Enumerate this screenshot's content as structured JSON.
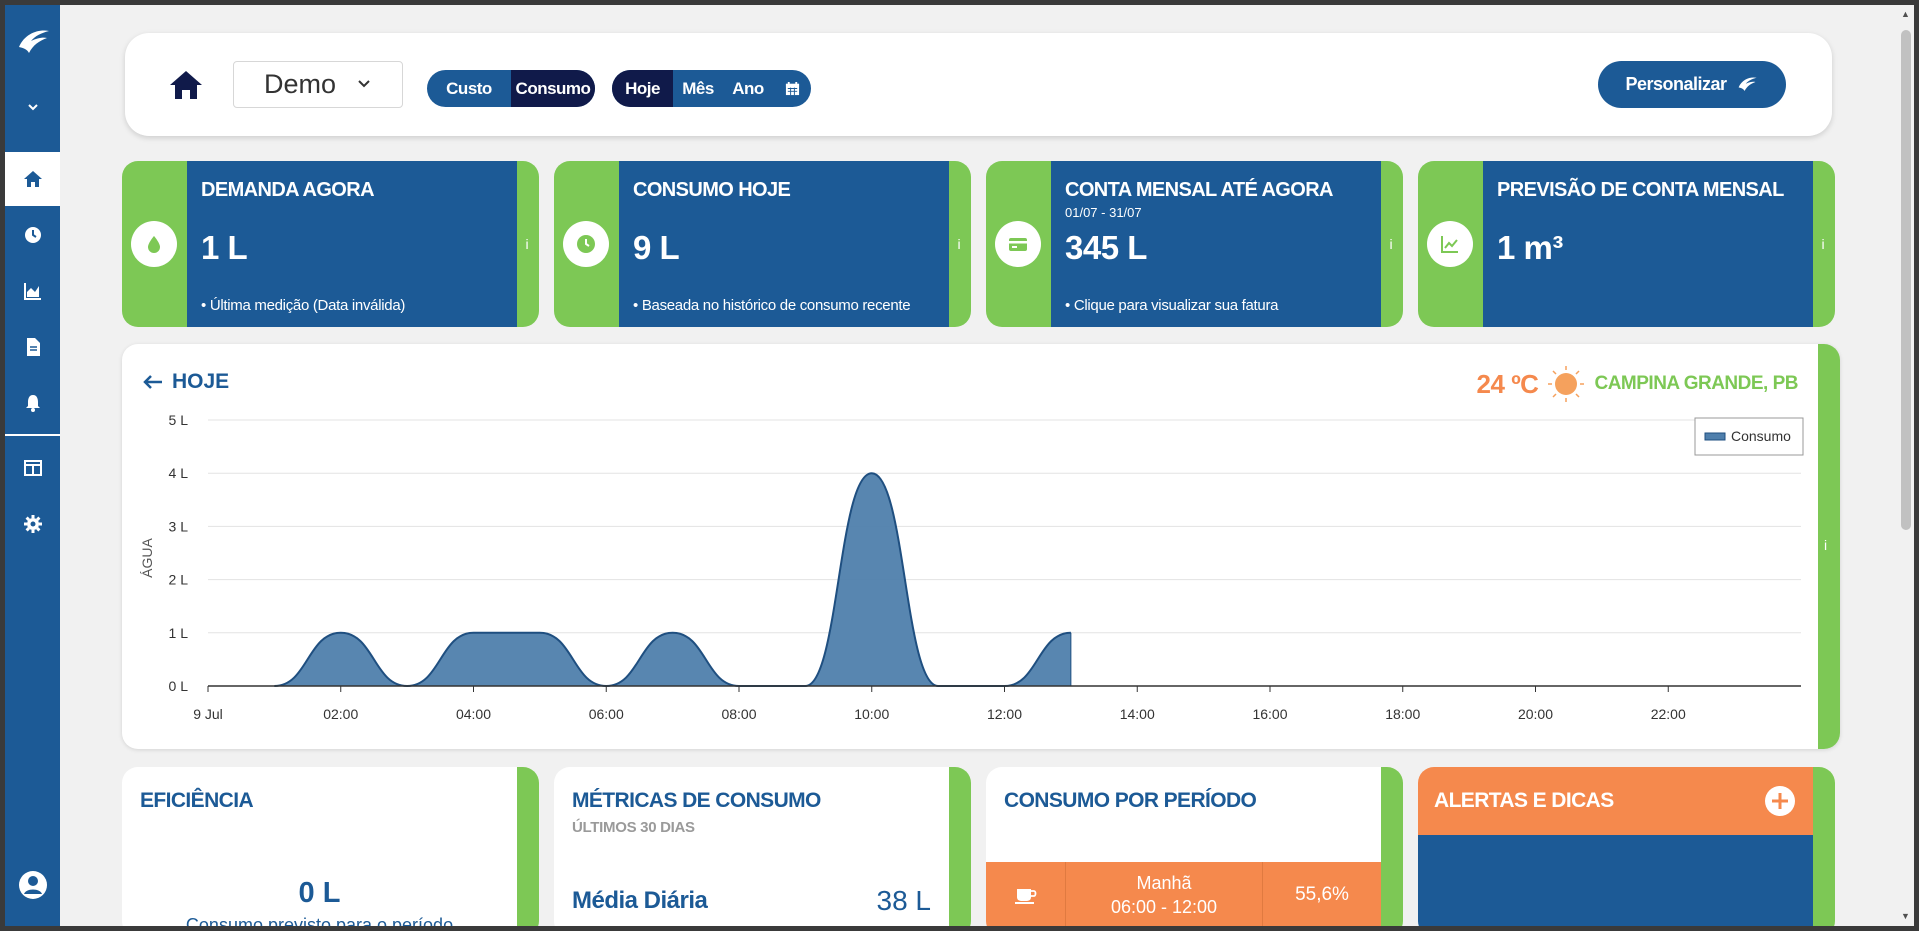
{
  "nav": {
    "items": [
      "home-icon",
      "clock-icon",
      "area-chart-icon",
      "document-icon",
      "bell-icon",
      "dashboard-icon",
      "gear-icon"
    ],
    "active": "home-icon",
    "bottom": "user-icon"
  },
  "toolbar": {
    "site": "Demo",
    "mode_options": [
      "Custo",
      "Consumo"
    ],
    "mode_selected": "Consumo",
    "period_options": [
      "Hoje",
      "Mês",
      "Ano"
    ],
    "period_selected": "Hoje",
    "customize_label": "Personalizar"
  },
  "cards": [
    {
      "title": "DEMANDA AGORA",
      "subtitle": "",
      "value": "1 L",
      "note": "• Última medição (Data inválida)",
      "icon": "water-drop-icon",
      "info": "i"
    },
    {
      "title": "CONSUMO HOJE",
      "subtitle": "",
      "value": "9 L",
      "note": "• Baseada no histórico de consumo recente",
      "icon": "clock-icon",
      "info": "i"
    },
    {
      "title": "CONTA MENSAL ATÉ AGORA",
      "subtitle": "01/07 - 31/07",
      "value": "345 L",
      "note": "• Clique para visualizar sua fatura",
      "icon": "credit-card-icon",
      "info": "i"
    },
    {
      "title": "PREVISÃO DE CONTA MENSAL",
      "subtitle": "",
      "value": "1 m³",
      "note": "",
      "icon": "line-chart-icon",
      "info": "i"
    }
  ],
  "chart_panel": {
    "back_label": "HOJE",
    "temperature": "24 ºC",
    "weather_icon": "sun-icon",
    "city": "CAMPINA GRANDE, PB",
    "info": "i"
  },
  "chart_data": {
    "type": "area",
    "ylabel": "ÁGUA",
    "legend": [
      "Consumo"
    ],
    "legend_position": "top-right",
    "ylim": [
      0,
      5
    ],
    "yticks": [
      "0 L",
      "1 L",
      "2 L",
      "3 L",
      "4 L",
      "5 L"
    ],
    "xlim": [
      0,
      24
    ],
    "xticks": [
      {
        "hour": 0,
        "label": "9 Jul"
      },
      {
        "hour": 2,
        "label": "02:00"
      },
      {
        "hour": 4,
        "label": "04:00"
      },
      {
        "hour": 6,
        "label": "06:00"
      },
      {
        "hour": 8,
        "label": "08:00"
      },
      {
        "hour": 10,
        "label": "10:00"
      },
      {
        "hour": 12,
        "label": "12:00"
      },
      {
        "hour": 14,
        "label": "14:00"
      },
      {
        "hour": 16,
        "label": "16:00"
      },
      {
        "hour": 18,
        "label": "18:00"
      },
      {
        "hour": 20,
        "label": "20:00"
      },
      {
        "hour": 22,
        "label": "22:00"
      }
    ],
    "series": [
      {
        "name": "Consumo",
        "color": "#4f7fac",
        "x": [
          1,
          2,
          3,
          4,
          5,
          6,
          7,
          8,
          9,
          10,
          11,
          12,
          13
        ],
        "y": [
          0,
          1,
          0,
          1,
          1,
          0,
          1,
          0,
          0,
          4,
          0,
          0,
          1
        ]
      }
    ],
    "grid": true
  },
  "efficiency": {
    "title": "EFICIÊNCIA",
    "value": "0 L",
    "description": "Consumo previsto para o período"
  },
  "metrics": {
    "title": "MÉTRICAS DE CONSUMO",
    "subtitle": "ÚLTIMOS 30 DIAS",
    "label": "Média Diária",
    "value": "38 L"
  },
  "periods": {
    "title": "CONSUMO POR PERÍODO",
    "rows": [
      {
        "icon": "coffee-cup-icon",
        "name": "Manhã",
        "range": "06:00 - 12:00",
        "percent": "55,6%"
      }
    ]
  },
  "alerts": {
    "title": "ALERTAS E DICAS"
  },
  "colors": {
    "primary": "#1c5a96",
    "accent_green": "#7dc855",
    "accent_orange": "#f5894d",
    "navy": "#101a4a"
  }
}
